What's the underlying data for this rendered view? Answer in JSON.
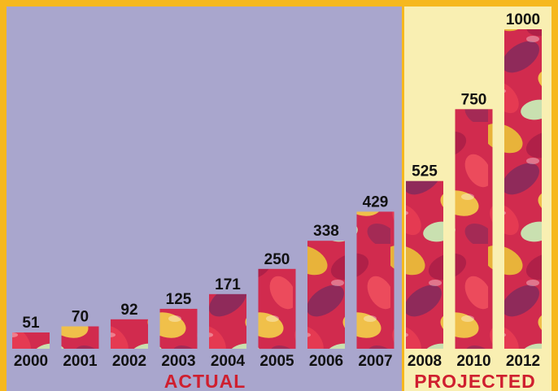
{
  "chart_data": {
    "type": "bar",
    "title": "",
    "xlabel": "",
    "ylabel": "",
    "categories": [
      "2000",
      "2001",
      "2002",
      "2003",
      "2004",
      "2005",
      "2006",
      "2007",
      "2008",
      "2010",
      "2012"
    ],
    "values": [
      51,
      70,
      92,
      125,
      171,
      250,
      338,
      429,
      525,
      750,
      1000
    ],
    "data_labels": [
      "51",
      "70",
      "92",
      "125",
      "171",
      "250",
      "338",
      "429",
      "525",
      "750",
      "1000"
    ],
    "ylim": [
      0,
      1000
    ],
    "grid": false,
    "legend": "none",
    "groups": [
      {
        "label": "ACTUAL",
        "categories": [
          "2000",
          "2001",
          "2002",
          "2003",
          "2004",
          "2005",
          "2006",
          "2007"
        ]
      },
      {
        "label": "PROJECTED",
        "categories": [
          "2008",
          "2010",
          "2012"
        ]
      }
    ]
  },
  "colors": {
    "frame": "#f6b81e",
    "actual_panel": "#a9a6cd",
    "projected_panel": "#f9efb2",
    "group_label": "#cf1f2f",
    "text": "#111111",
    "bar_fill": "jellybean-texture"
  }
}
